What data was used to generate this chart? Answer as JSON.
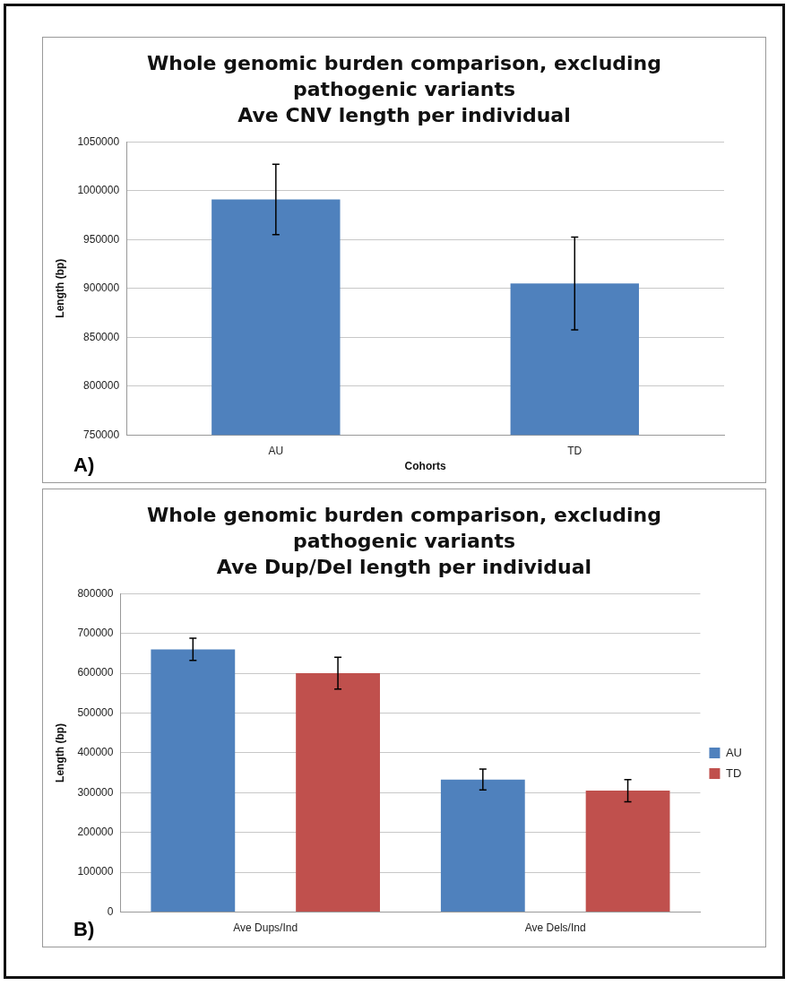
{
  "chart_data": [
    {
      "type": "bar",
      "title": "Whole genomic burden comparison, excluding pathogenic variants",
      "subtitle": "Ave CNV length per individual",
      "xlabel": "Cohorts",
      "ylabel": "Length (bp)",
      "annotations": [
        "A)"
      ],
      "categories": [
        "AU",
        "TD"
      ],
      "values": [
        991000,
        905000
      ],
      "errors": [
        36000,
        47500
      ],
      "color": "#4f81bd",
      "ylim": [
        750000,
        1050000
      ],
      "yticks": [
        750000,
        800000,
        850000,
        900000,
        950000,
        1000000,
        1050000
      ],
      "grid": "y",
      "legend": false
    },
    {
      "type": "bar",
      "title": "Whole genomic burden comparison, excluding pathogenic variants",
      "subtitle": "Ave Dup/Del length per individual",
      "ylabel": "Length (bp)",
      "annotations": [
        "B)"
      ],
      "categories": [
        "Ave Dups/Ind",
        "Ave Dels/Ind"
      ],
      "series": [
        {
          "name": "AU",
          "color": "#4f81bd",
          "values": [
            660000,
            333000
          ],
          "errors": [
            28000,
            26000
          ]
        },
        {
          "name": "TD",
          "color": "#c0504d",
          "values": [
            600000,
            305000
          ],
          "errors": [
            40000,
            28000
          ]
        }
      ],
      "ylim": [
        0,
        800000
      ],
      "yticks": [
        0,
        100000,
        200000,
        300000,
        400000,
        500000,
        600000,
        700000,
        800000
      ],
      "grid": "y",
      "legend": "right"
    }
  ]
}
